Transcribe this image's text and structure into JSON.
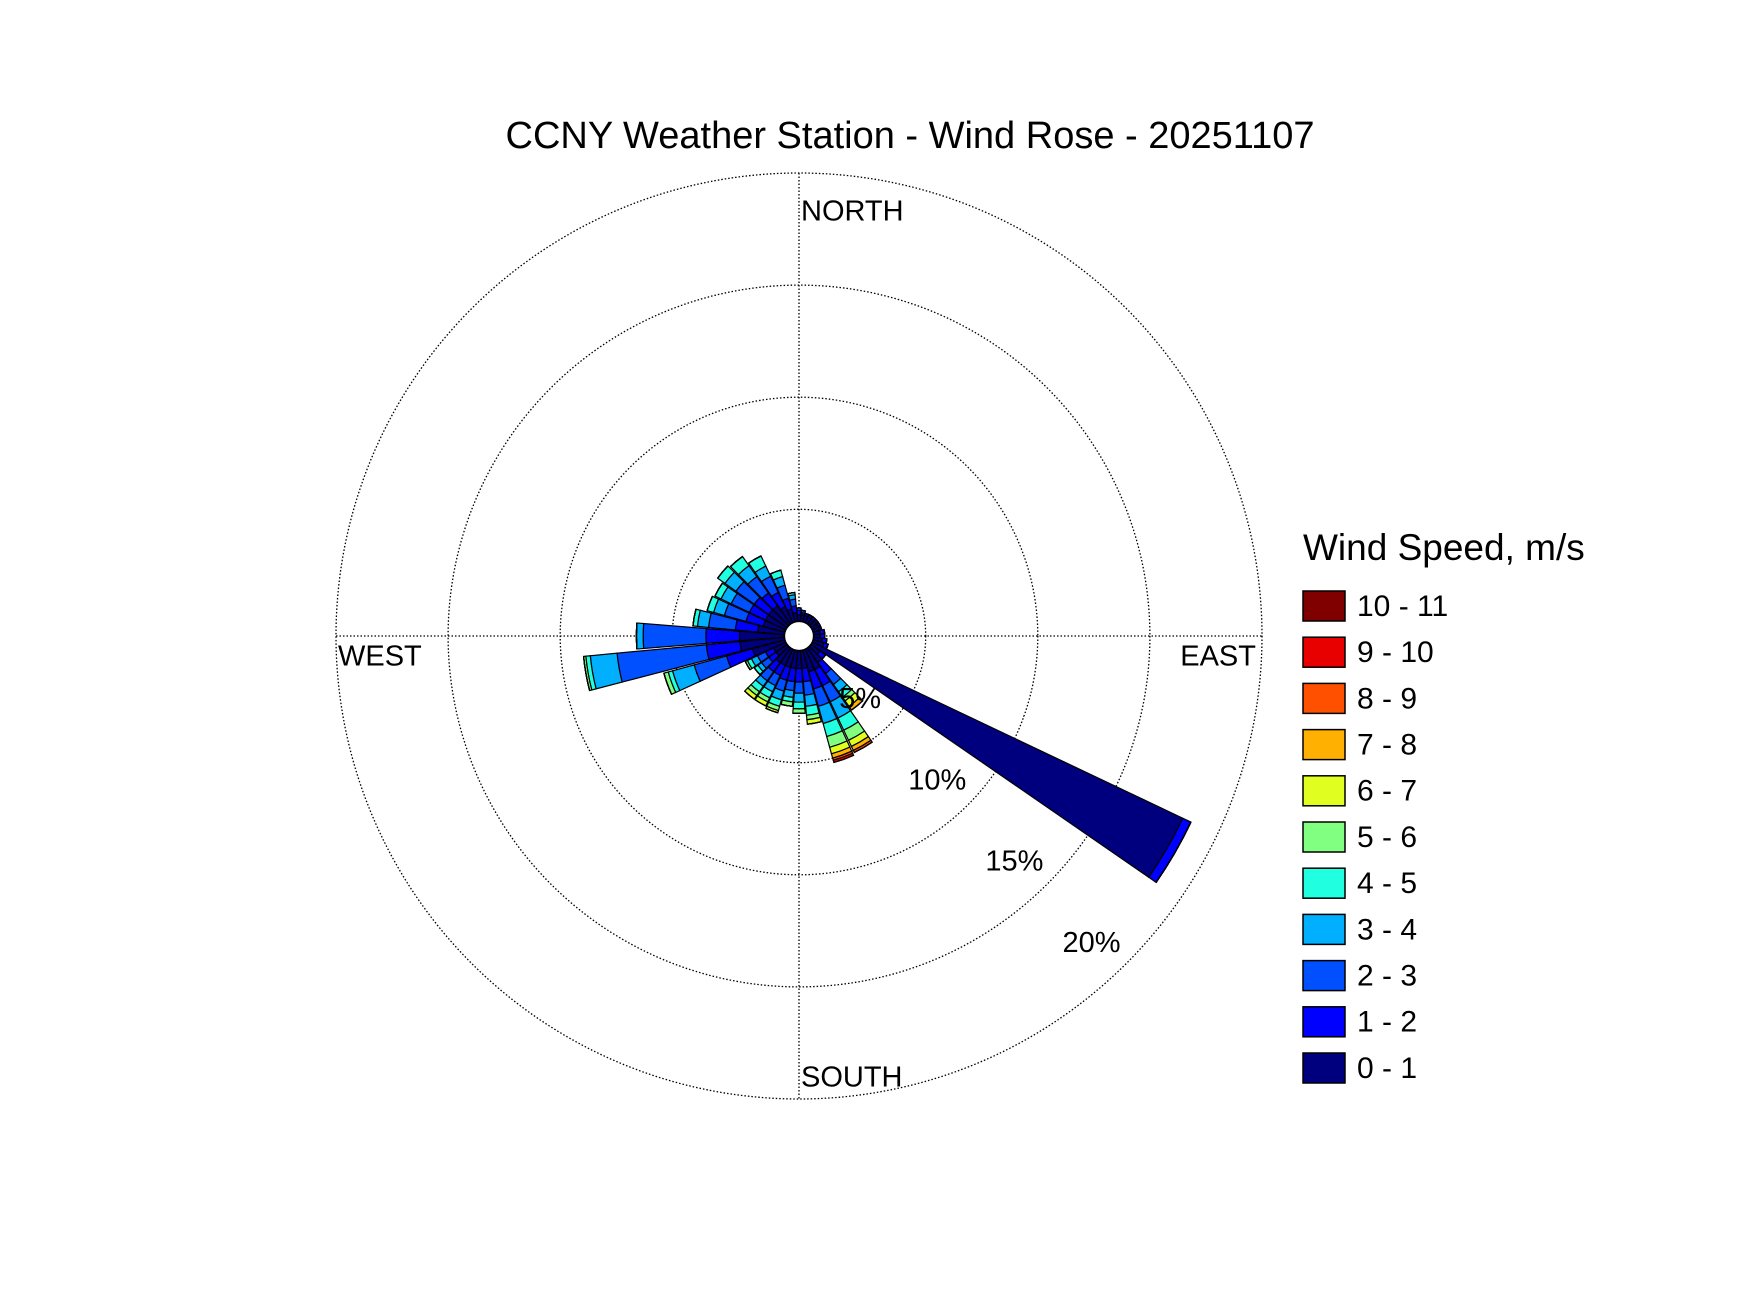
{
  "chart_data": {
    "type": "windrose",
    "title": "CCNY Weather Station - Wind Rose - 20251107",
    "compass_labels": [
      "NORTH",
      "EAST",
      "SOUTH",
      "WEST"
    ],
    "directions": [
      0,
      10,
      20,
      30,
      40,
      50,
      60,
      70,
      80,
      90,
      100,
      110,
      120,
      130,
      140,
      150,
      160,
      170,
      180,
      190,
      200,
      210,
      220,
      230,
      240,
      250,
      260,
      270,
      280,
      290,
      300,
      310,
      320,
      330,
      340,
      350
    ],
    "rlim": [
      0,
      20
    ],
    "rticks": [
      {
        "value": 5,
        "label": "5%"
      },
      {
        "value": 10,
        "label": "10%"
      },
      {
        "value": 15,
        "label": "15%"
      },
      {
        "value": 20,
        "label": "20%"
      }
    ],
    "grid": true,
    "legend_title": "Wind Speed, m/s",
    "series": [
      {
        "name": "0 - 1",
        "color": "#00007f",
        "values": [
          0.3,
          0.3,
          0.3,
          0.3,
          0.3,
          0.3,
          0.3,
          0.3,
          0.3,
          0.3,
          0.4,
          0.5,
          18.3,
          0.5,
          0.8,
          1.0,
          1.0,
          0.8,
          0.8,
          0.8,
          0.8,
          0.8,
          0.8,
          0.6,
          0.6,
          1.5,
          2.0,
          2.0,
          1.2,
          1.0,
          1.0,
          1.0,
          1.0,
          0.8,
          0.6,
          0.4
        ]
      },
      {
        "name": "1 - 2",
        "color": "#0000ff",
        "values": [
          0.2,
          0.1,
          0.1,
          0.1,
          0.1,
          0.1,
          0.1,
          0.1,
          0.2,
          0.2,
          0.2,
          0.2,
          0.4,
          0.3,
          0.6,
          0.8,
          0.8,
          0.6,
          0.6,
          0.6,
          0.6,
          0.5,
          0.5,
          0.4,
          0.4,
          1.2,
          1.5,
          1.5,
          1.0,
          0.8,
          0.8,
          0.8,
          0.7,
          0.7,
          0.5,
          0.3
        ]
      },
      {
        "name": "2 - 3",
        "color": "#0050ff",
        "values": [
          0.1,
          0.1,
          0,
          0,
          0,
          0,
          0,
          0,
          0,
          0,
          0,
          0,
          0,
          0,
          0.6,
          0.8,
          0.8,
          0.6,
          0.5,
          0.4,
          0.5,
          0.5,
          0.5,
          0.4,
          0.4,
          1.5,
          4.0,
          2.8,
          1.2,
          1.0,
          0.9,
          1.0,
          0.9,
          0.8,
          0.6,
          0.3
        ]
      },
      {
        "name": "3 - 4",
        "color": "#00b0ff",
        "values": [
          0,
          0,
          0,
          0,
          0,
          0,
          0,
          0,
          0,
          0,
          0,
          0,
          0,
          0,
          0.4,
          0.8,
          0.8,
          0.5,
          0.4,
          0.3,
          0.4,
          0.3,
          0.3,
          0.2,
          0.3,
          1.0,
          1.2,
          0.3,
          0.5,
          0.5,
          0.5,
          0.6,
          0.6,
          0.5,
          0.4,
          0.2
        ]
      },
      {
        "name": "4 - 5",
        "color": "#20ffe0",
        "values": [
          0,
          0,
          0,
          0,
          0,
          0,
          0,
          0,
          0,
          0,
          0,
          0,
          0,
          0,
          0.3,
          0.6,
          0.6,
          0.4,
          0.3,
          0.2,
          0.3,
          0.3,
          0.3,
          0.2,
          0.2,
          0.2,
          0.2,
          0,
          0.2,
          0.3,
          0.3,
          0.4,
          0.5,
          0.5,
          0.3,
          0.1
        ]
      },
      {
        "name": "5 - 6",
        "color": "#80ff80",
        "values": [
          0,
          0,
          0,
          0,
          0,
          0,
          0,
          0,
          0,
          0,
          0,
          0,
          0,
          0,
          0.2,
          0.5,
          0.5,
          0.2,
          0.2,
          0.2,
          0.2,
          0.2,
          0.2,
          0,
          0.1,
          0.2,
          0.1,
          0,
          0,
          0,
          0,
          0,
          0,
          0,
          0,
          0
        ]
      },
      {
        "name": "6 - 7",
        "color": "#e0ff20",
        "values": [
          0,
          0,
          0,
          0,
          0,
          0,
          0,
          0,
          0,
          0,
          0,
          0,
          0,
          0,
          0.3,
          0.3,
          0.3,
          0.2,
          0,
          0,
          0.1,
          0.2,
          0.2,
          0,
          0,
          0,
          0,
          0,
          0,
          0,
          0,
          0,
          0,
          0,
          0,
          0
        ]
      },
      {
        "name": "7 - 8",
        "color": "#ffb000",
        "values": [
          0,
          0,
          0,
          0,
          0,
          0,
          0,
          0,
          0,
          0,
          0,
          0,
          0,
          0,
          0.2,
          0.2,
          0.2,
          0,
          0,
          0,
          0,
          0,
          0,
          0,
          0,
          0,
          0,
          0,
          0,
          0,
          0,
          0,
          0,
          0,
          0,
          0
        ]
      },
      {
        "name": "8 - 9",
        "color": "#ff5000",
        "values": [
          0,
          0,
          0,
          0,
          0,
          0,
          0,
          0,
          0,
          0,
          0,
          0,
          0,
          0,
          0,
          0.1,
          0.1,
          0,
          0,
          0,
          0,
          0,
          0,
          0,
          0,
          0,
          0,
          0,
          0,
          0,
          0,
          0,
          0,
          0,
          0,
          0
        ]
      },
      {
        "name": "9 - 10",
        "color": "#e80000",
        "values": [
          0,
          0,
          0,
          0,
          0,
          0,
          0,
          0,
          0,
          0,
          0,
          0,
          0,
          0,
          0,
          0,
          0.1,
          0,
          0,
          0,
          0,
          0,
          0,
          0,
          0,
          0,
          0,
          0,
          0,
          0,
          0,
          0,
          0,
          0,
          0,
          0
        ]
      },
      {
        "name": "10 - 11",
        "color": "#800000",
        "values": [
          0,
          0,
          0,
          0,
          0,
          0,
          0,
          0,
          0,
          0,
          0,
          0,
          0,
          0,
          0,
          0,
          0,
          0,
          0,
          0,
          0,
          0,
          0,
          0,
          0,
          0,
          0,
          0,
          0,
          0,
          0,
          0,
          0,
          0,
          0,
          0
        ]
      }
    ]
  }
}
